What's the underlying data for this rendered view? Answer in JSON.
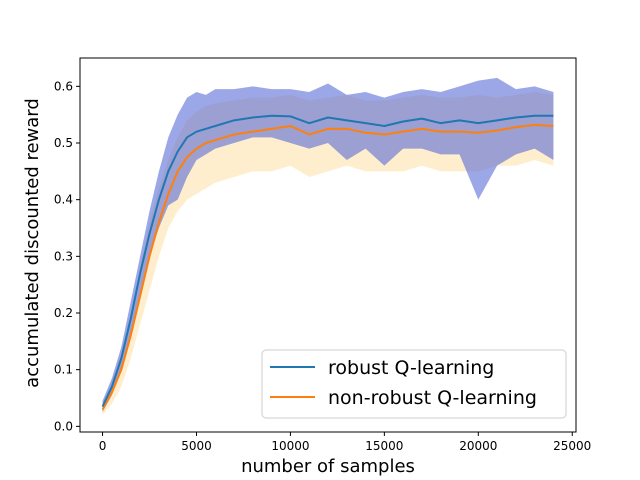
{
  "chart_data": {
    "type": "line",
    "title": "",
    "xlabel": "number of samples",
    "ylabel": "accumulated discounted reward",
    "xlim": [
      -1200,
      25200
    ],
    "ylim": [
      -0.01,
      0.65
    ],
    "xticks": [
      0,
      5000,
      10000,
      15000,
      20000,
      25000
    ],
    "yticks": [
      0.0,
      0.1,
      0.2,
      0.3,
      0.4,
      0.5,
      0.6
    ],
    "xtick_labels": [
      "0",
      "5000",
      "10000",
      "15000",
      "20000",
      "25000"
    ],
    "ytick_labels": [
      "0.0",
      "0.1",
      "0.2",
      "0.3",
      "0.4",
      "0.5",
      "0.6"
    ],
    "grid": false,
    "legend_position": "lower-right",
    "series": [
      {
        "name": "robust Q-learning",
        "color": "#1f77b4",
        "band_color": "#4a5fd6",
        "x": [
          0,
          500,
          1000,
          1500,
          2000,
          2500,
          3000,
          3500,
          4000,
          4500,
          5000,
          5500,
          6000,
          7000,
          8000,
          9000,
          10000,
          11000,
          12000,
          13000,
          14000,
          15000,
          16000,
          17000,
          18000,
          19000,
          20000,
          21000,
          22000,
          23000,
          24000
        ],
        "values": [
          0.035,
          0.07,
          0.12,
          0.19,
          0.27,
          0.34,
          0.4,
          0.45,
          0.485,
          0.51,
          0.52,
          0.525,
          0.53,
          0.54,
          0.545,
          0.548,
          0.547,
          0.535,
          0.545,
          0.54,
          0.535,
          0.53,
          0.538,
          0.543,
          0.535,
          0.54,
          0.535,
          0.54,
          0.545,
          0.548,
          0.548
        ],
        "lower": [
          0.025,
          0.055,
          0.1,
          0.16,
          0.23,
          0.3,
          0.35,
          0.39,
          0.4,
          0.44,
          0.47,
          0.48,
          0.49,
          0.5,
          0.51,
          0.51,
          0.5,
          0.49,
          0.5,
          0.47,
          0.49,
          0.46,
          0.49,
          0.49,
          0.48,
          0.48,
          0.4,
          0.46,
          0.48,
          0.49,
          0.47
        ],
        "upper": [
          0.045,
          0.085,
          0.14,
          0.22,
          0.3,
          0.38,
          0.45,
          0.51,
          0.55,
          0.58,
          0.59,
          0.585,
          0.595,
          0.595,
          0.6,
          0.595,
          0.595,
          0.59,
          0.605,
          0.585,
          0.59,
          0.58,
          0.59,
          0.595,
          0.59,
          0.6,
          0.61,
          0.615,
          0.595,
          0.6,
          0.59
        ]
      },
      {
        "name": "non-robust Q-learning",
        "color": "#ff7f0e",
        "band_color": "#fde7b8",
        "x": [
          0,
          500,
          1000,
          1500,
          2000,
          2500,
          3000,
          3500,
          4000,
          4500,
          5000,
          5500,
          6000,
          7000,
          8000,
          9000,
          10000,
          11000,
          12000,
          13000,
          14000,
          15000,
          16000,
          17000,
          18000,
          19000,
          20000,
          21000,
          22000,
          23000,
          24000
        ],
        "values": [
          0.03,
          0.06,
          0.1,
          0.16,
          0.23,
          0.3,
          0.36,
          0.41,
          0.45,
          0.475,
          0.49,
          0.5,
          0.505,
          0.515,
          0.52,
          0.525,
          0.53,
          0.515,
          0.525,
          0.525,
          0.518,
          0.515,
          0.52,
          0.525,
          0.52,
          0.52,
          0.518,
          0.522,
          0.528,
          0.532,
          0.53
        ],
        "lower": [
          0.02,
          0.04,
          0.07,
          0.12,
          0.18,
          0.24,
          0.3,
          0.35,
          0.38,
          0.4,
          0.41,
          0.42,
          0.43,
          0.44,
          0.45,
          0.45,
          0.46,
          0.44,
          0.45,
          0.46,
          0.45,
          0.45,
          0.45,
          0.46,
          0.45,
          0.45,
          0.45,
          0.46,
          0.46,
          0.47,
          0.46
        ],
        "upper": [
          0.04,
          0.08,
          0.13,
          0.2,
          0.28,
          0.36,
          0.42,
          0.47,
          0.51,
          0.54,
          0.555,
          0.565,
          0.57,
          0.575,
          0.58,
          0.58,
          0.585,
          0.575,
          0.58,
          0.585,
          0.575,
          0.575,
          0.58,
          0.585,
          0.58,
          0.58,
          0.585,
          0.58,
          0.585,
          0.59,
          0.585
        ]
      }
    ]
  }
}
